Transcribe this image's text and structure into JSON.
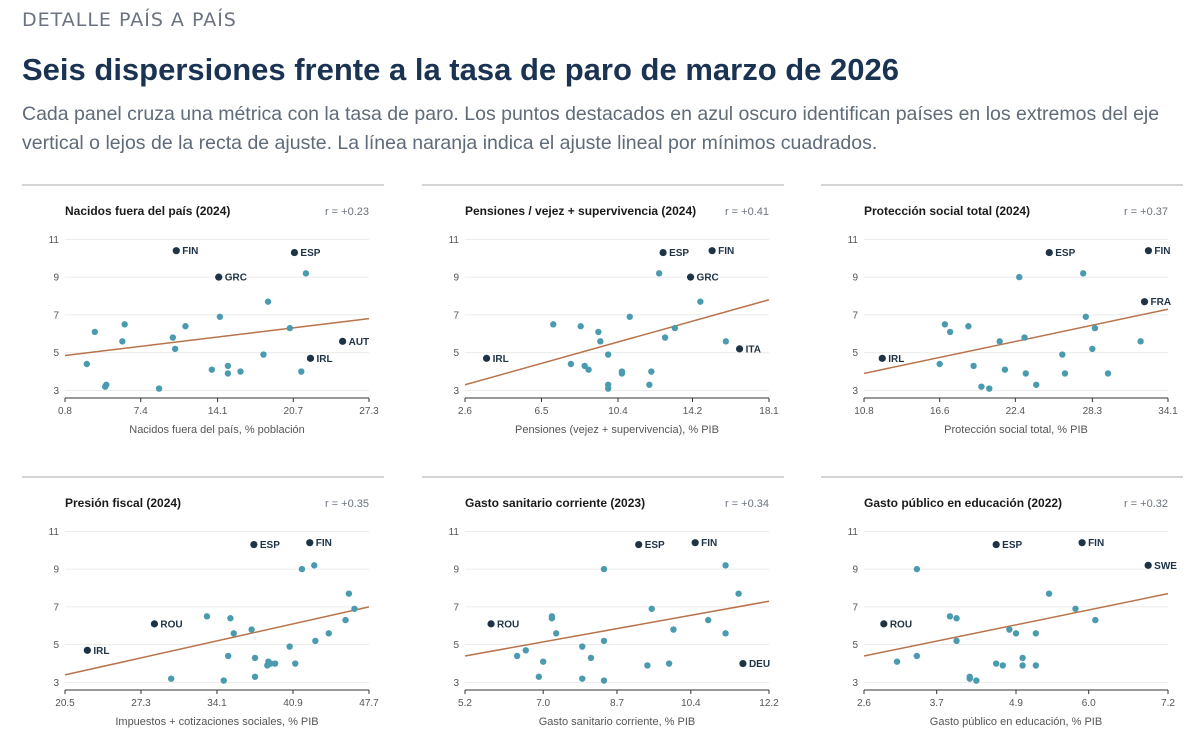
{
  "header": {
    "kicker": "DETALLE PAÍS A PAÍS",
    "title": "Seis dispersiones frente a la tasa de paro de marzo de 2026",
    "subtitle": "Cada panel cruza una métrica con la tasa de paro. Los puntos destacados en azul oscuro identifican países en los extremos del eje vertical o lejos de la recta de ajuste. La línea naranja indica el ajuste lineal por mínimos cuadrados."
  },
  "colors": {
    "point": "#4a9bb0",
    "highlight": "#1f3346",
    "fit_line": "#b8734a"
  },
  "chart_data": [
    {
      "type": "scatter",
      "title": "Nacidos fuera del país (2024)",
      "r_label": "r = +0.23",
      "xlabel": "Nacidos fuera del país, % población",
      "xlim": [
        0.8,
        27.3
      ],
      "ylim": [
        2.6,
        11.6
      ],
      "xticks": [
        "0.8",
        "7.4",
        "14.1",
        "20.7",
        "27.3"
      ],
      "yticks": [
        "3",
        "5",
        "7",
        "9",
        "11"
      ],
      "fit": [
        [
          0.8,
          4.85
        ],
        [
          27.3,
          6.8
        ]
      ],
      "points": [
        {
          "x": 10.5,
          "y": 10.4,
          "label": "FIN"
        },
        {
          "x": 20.8,
          "y": 10.3,
          "label": "ESP"
        },
        {
          "x": 14.2,
          "y": 9.0,
          "label": "GRC"
        },
        {
          "x": 25.0,
          "y": 5.6,
          "label": "AUT"
        },
        {
          "x": 22.2,
          "y": 4.7,
          "label": "IRL"
        },
        {
          "x": 21.8,
          "y": 9.2
        },
        {
          "x": 18.5,
          "y": 7.7
        },
        {
          "x": 14.3,
          "y": 6.9
        },
        {
          "x": 20.4,
          "y": 6.3
        },
        {
          "x": 3.4,
          "y": 6.1
        },
        {
          "x": 6.0,
          "y": 6.5
        },
        {
          "x": 11.3,
          "y": 6.4
        },
        {
          "x": 10.2,
          "y": 5.8
        },
        {
          "x": 5.8,
          "y": 5.6
        },
        {
          "x": 10.4,
          "y": 5.2
        },
        {
          "x": 18.1,
          "y": 4.9
        },
        {
          "x": 2.7,
          "y": 4.4
        },
        {
          "x": 15.0,
          "y": 4.3
        },
        {
          "x": 13.6,
          "y": 4.1
        },
        {
          "x": 16.1,
          "y": 4.0
        },
        {
          "x": 21.4,
          "y": 4.0
        },
        {
          "x": 15.0,
          "y": 3.9
        },
        {
          "x": 4.4,
          "y": 3.3
        },
        {
          "x": 4.3,
          "y": 3.2
        },
        {
          "x": 9.0,
          "y": 3.1
        }
      ]
    },
    {
      "type": "scatter",
      "title": "Pensiones / vejez + supervivencia (2024)",
      "r_label": "r = +0.41",
      "xlabel": "Pensiones (vejez + supervivencia), % PIB",
      "xlim": [
        2.6,
        18.1
      ],
      "ylim": [
        2.6,
        11.6
      ],
      "xticks": [
        "2.6",
        "6.5",
        "10.4",
        "14.2",
        "18.1"
      ],
      "yticks": [
        "3",
        "5",
        "7",
        "9",
        "11"
      ],
      "fit": [
        [
          2.6,
          3.3
        ],
        [
          18.1,
          7.8
        ]
      ],
      "points": [
        {
          "x": 15.2,
          "y": 10.4,
          "label": "FIN"
        },
        {
          "x": 12.7,
          "y": 10.3,
          "label": "ESP"
        },
        {
          "x": 14.1,
          "y": 9.0,
          "label": "GRC"
        },
        {
          "x": 16.6,
          "y": 5.2,
          "label": "ITA"
        },
        {
          "x": 3.7,
          "y": 4.7,
          "label": "IRL"
        },
        {
          "x": 12.5,
          "y": 9.2
        },
        {
          "x": 14.6,
          "y": 7.7
        },
        {
          "x": 11.0,
          "y": 6.9
        },
        {
          "x": 7.1,
          "y": 6.5
        },
        {
          "x": 8.5,
          "y": 6.4
        },
        {
          "x": 13.3,
          "y": 6.3
        },
        {
          "x": 9.4,
          "y": 6.1
        },
        {
          "x": 12.8,
          "y": 5.8
        },
        {
          "x": 9.5,
          "y": 5.6
        },
        {
          "x": 15.9,
          "y": 5.6
        },
        {
          "x": 9.9,
          "y": 4.9
        },
        {
          "x": 8.0,
          "y": 4.4
        },
        {
          "x": 8.7,
          "y": 4.3
        },
        {
          "x": 8.9,
          "y": 4.1
        },
        {
          "x": 12.1,
          "y": 4.0
        },
        {
          "x": 10.6,
          "y": 4.0
        },
        {
          "x": 10.6,
          "y": 3.9
        },
        {
          "x": 9.9,
          "y": 3.3
        },
        {
          "x": 12.0,
          "y": 3.3
        },
        {
          "x": 9.9,
          "y": 3.1
        }
      ]
    },
    {
      "type": "scatter",
      "title": "Protección social total (2024)",
      "r_label": "r = +0.37",
      "xlabel": "Protección social total, % PIB",
      "xlim": [
        10.8,
        34.1
      ],
      "ylim": [
        2.6,
        11.6
      ],
      "xticks": [
        "10.8",
        "16.6",
        "22.4",
        "28.3",
        "34.1"
      ],
      "yticks": [
        "3",
        "5",
        "7",
        "9",
        "11"
      ],
      "fit": [
        [
          10.8,
          3.9
        ],
        [
          34.1,
          7.3
        ]
      ],
      "points": [
        {
          "x": 32.6,
          "y": 10.4,
          "label": "FIN"
        },
        {
          "x": 25.0,
          "y": 10.3,
          "label": "ESP"
        },
        {
          "x": 32.3,
          "y": 7.7,
          "label": "FRA"
        },
        {
          "x": 12.2,
          "y": 4.7,
          "label": "IRL"
        },
        {
          "x": 27.6,
          "y": 9.2
        },
        {
          "x": 22.7,
          "y": 9.0
        },
        {
          "x": 27.8,
          "y": 6.9
        },
        {
          "x": 17.0,
          "y": 6.5
        },
        {
          "x": 18.8,
          "y": 6.4
        },
        {
          "x": 28.5,
          "y": 6.3
        },
        {
          "x": 17.4,
          "y": 6.1
        },
        {
          "x": 23.1,
          "y": 5.8
        },
        {
          "x": 21.2,
          "y": 5.6
        },
        {
          "x": 32.0,
          "y": 5.6
        },
        {
          "x": 28.3,
          "y": 5.2
        },
        {
          "x": 26.0,
          "y": 4.9
        },
        {
          "x": 16.6,
          "y": 4.4
        },
        {
          "x": 19.2,
          "y": 4.3
        },
        {
          "x": 21.6,
          "y": 4.1
        },
        {
          "x": 23.2,
          "y": 3.9
        },
        {
          "x": 26.2,
          "y": 3.9
        },
        {
          "x": 29.5,
          "y": 3.9
        },
        {
          "x": 24.0,
          "y": 3.3
        },
        {
          "x": 19.8,
          "y": 3.2
        },
        {
          "x": 20.4,
          "y": 3.1
        }
      ]
    },
    {
      "type": "scatter",
      "title": "Presión fiscal (2024)",
      "r_label": "r = +0.35",
      "xlabel": "Impuestos + cotizaciones sociales, % PIB",
      "xlim": [
        20.5,
        47.7
      ],
      "ylim": [
        2.6,
        11.6
      ],
      "xticks": [
        "20.5",
        "27.3",
        "34.1",
        "40.9",
        "47.7"
      ],
      "yticks": [
        "3",
        "5",
        "7",
        "9",
        "11"
      ],
      "fit": [
        [
          20.5,
          3.4
        ],
        [
          47.7,
          7.0
        ]
      ],
      "points": [
        {
          "x": 42.4,
          "y": 10.4,
          "label": "FIN"
        },
        {
          "x": 37.4,
          "y": 10.3,
          "label": "ESP"
        },
        {
          "x": 28.5,
          "y": 6.1,
          "label": "ROU"
        },
        {
          "x": 22.5,
          "y": 4.7,
          "label": "IRL"
        },
        {
          "x": 42.8,
          "y": 9.2
        },
        {
          "x": 41.7,
          "y": 9.0
        },
        {
          "x": 45.9,
          "y": 7.7
        },
        {
          "x": 46.4,
          "y": 6.9
        },
        {
          "x": 33.2,
          "y": 6.5
        },
        {
          "x": 35.3,
          "y": 6.4
        },
        {
          "x": 45.6,
          "y": 6.3
        },
        {
          "x": 37.2,
          "y": 5.8
        },
        {
          "x": 35.6,
          "y": 5.6
        },
        {
          "x": 44.1,
          "y": 5.6
        },
        {
          "x": 42.9,
          "y": 5.2
        },
        {
          "x": 40.6,
          "y": 4.9
        },
        {
          "x": 35.1,
          "y": 4.4
        },
        {
          "x": 37.5,
          "y": 4.3
        },
        {
          "x": 38.7,
          "y": 4.1
        },
        {
          "x": 38.9,
          "y": 4.0
        },
        {
          "x": 39.3,
          "y": 4.0
        },
        {
          "x": 41.1,
          "y": 4.0
        },
        {
          "x": 38.6,
          "y": 3.9
        },
        {
          "x": 37.5,
          "y": 3.3
        },
        {
          "x": 30.0,
          "y": 3.2
        },
        {
          "x": 34.7,
          "y": 3.1
        }
      ]
    },
    {
      "type": "scatter",
      "title": "Gasto sanitario corriente (2023)",
      "r_label": "r = +0.34",
      "xlabel": "Gasto sanitario corriente, % PIB",
      "xlim": [
        5.2,
        12.2
      ],
      "ylim": [
        2.6,
        11.6
      ],
      "xticks": [
        "5.2",
        "7.0",
        "8.7",
        "10.4",
        "12.2"
      ],
      "yticks": [
        "3",
        "5",
        "7",
        "9",
        "11"
      ],
      "fit": [
        [
          5.2,
          4.4
        ],
        [
          12.2,
          7.3
        ]
      ],
      "points": [
        {
          "x": 10.5,
          "y": 10.4,
          "label": "FIN"
        },
        {
          "x": 9.2,
          "y": 10.3,
          "label": "ESP"
        },
        {
          "x": 5.8,
          "y": 6.1,
          "label": "ROU"
        },
        {
          "x": 11.6,
          "y": 4.0,
          "label": "DEU"
        },
        {
          "x": 11.2,
          "y": 9.2
        },
        {
          "x": 8.4,
          "y": 9.0
        },
        {
          "x": 11.5,
          "y": 7.7
        },
        {
          "x": 9.5,
          "y": 6.9
        },
        {
          "x": 7.2,
          "y": 6.5
        },
        {
          "x": 7.2,
          "y": 6.4
        },
        {
          "x": 10.8,
          "y": 6.3
        },
        {
          "x": 10.0,
          "y": 5.8
        },
        {
          "x": 7.3,
          "y": 5.6
        },
        {
          "x": 11.2,
          "y": 5.6
        },
        {
          "x": 8.4,
          "y": 5.2
        },
        {
          "x": 7.9,
          "y": 4.9
        },
        {
          "x": 6.6,
          "y": 4.7
        },
        {
          "x": 6.4,
          "y": 4.4
        },
        {
          "x": 8.1,
          "y": 4.3
        },
        {
          "x": 7.0,
          "y": 4.1
        },
        {
          "x": 9.9,
          "y": 4.0
        },
        {
          "x": 9.4,
          "y": 3.9
        },
        {
          "x": 6.9,
          "y": 3.3
        },
        {
          "x": 7.9,
          "y": 3.2
        },
        {
          "x": 8.4,
          "y": 3.1
        }
      ]
    },
    {
      "type": "scatter",
      "title": "Gasto público en educación (2022)",
      "r_label": "r = +0.32",
      "xlabel": "Gasto público en educación, % PIB",
      "xlim": [
        2.6,
        7.2
      ],
      "ylim": [
        2.6,
        11.6
      ],
      "xticks": [
        "2.6",
        "3.7",
        "4.9",
        "6.0",
        "7.2"
      ],
      "yticks": [
        "3",
        "5",
        "7",
        "9",
        "11"
      ],
      "fit": [
        [
          2.6,
          4.4
        ],
        [
          7.2,
          7.7
        ]
      ],
      "points": [
        {
          "x": 5.9,
          "y": 10.4,
          "label": "FIN"
        },
        {
          "x": 4.6,
          "y": 10.3,
          "label": "ESP"
        },
        {
          "x": 6.9,
          "y": 9.2,
          "label": "SWE"
        },
        {
          "x": 2.9,
          "y": 6.1,
          "label": "ROU"
        },
        {
          "x": 3.4,
          "y": 9.0
        },
        {
          "x": 5.4,
          "y": 7.7
        },
        {
          "x": 5.8,
          "y": 6.9
        },
        {
          "x": 3.9,
          "y": 6.5
        },
        {
          "x": 4.0,
          "y": 6.4
        },
        {
          "x": 6.1,
          "y": 6.3
        },
        {
          "x": 4.8,
          "y": 5.8
        },
        {
          "x": 4.9,
          "y": 5.6
        },
        {
          "x": 5.2,
          "y": 5.6
        },
        {
          "x": 4.0,
          "y": 5.2
        },
        {
          "x": 5.0,
          "y": 4.3
        },
        {
          "x": 3.4,
          "y": 4.4
        },
        {
          "x": 3.1,
          "y": 4.1
        },
        {
          "x": 4.6,
          "y": 4.0
        },
        {
          "x": 4.7,
          "y": 3.9
        },
        {
          "x": 5.2,
          "y": 3.9
        },
        {
          "x": 5.0,
          "y": 3.9
        },
        {
          "x": 4.2,
          "y": 3.3
        },
        {
          "x": 4.2,
          "y": 3.2
        },
        {
          "x": 4.3,
          "y": 3.1
        }
      ]
    }
  ]
}
